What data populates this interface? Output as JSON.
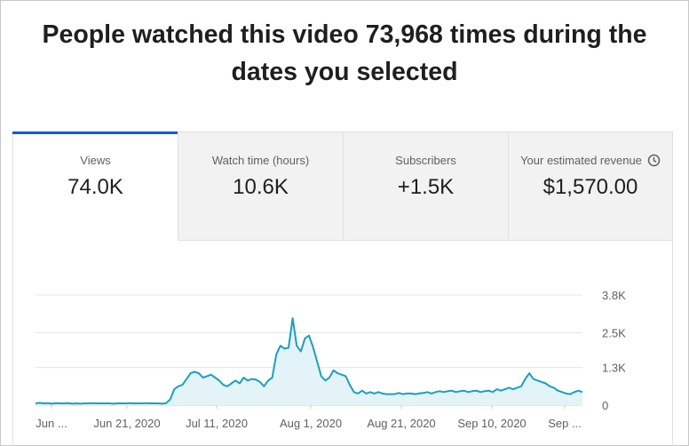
{
  "headline": "People watched this video 73,968 times during the dates you selected",
  "tabs": [
    {
      "label": "Views",
      "value": "74.0K",
      "active": true
    },
    {
      "label": "Watch time (hours)",
      "value": "10.6K",
      "active": false
    },
    {
      "label": "Subscribers",
      "value": "+1.5K",
      "active": false
    },
    {
      "label": "Your estimated revenue",
      "value": "$1,570.00",
      "active": false,
      "icon": "clock-icon"
    }
  ],
  "colors": {
    "accent": "#065fd4",
    "line": "#1ba0be",
    "area": "#e3f3f8",
    "grid": "#e5e5e5"
  },
  "chart_data": {
    "type": "area",
    "series": [
      {
        "values": [
          60,
          80,
          60,
          70,
          50,
          70,
          60,
          60,
          70,
          50,
          60,
          50,
          60,
          60,
          70,
          60,
          60,
          60,
          60,
          50,
          60,
          60,
          60,
          70,
          60,
          60,
          60,
          70,
          60,
          60,
          60,
          50,
          70,
          200,
          550,
          650,
          700,
          900,
          1100,
          1150,
          1100,
          950,
          1000,
          1050,
          950,
          850,
          700,
          650,
          750,
          850,
          750,
          950,
          850,
          900,
          880,
          800,
          650,
          850,
          950,
          1750,
          2050,
          1950,
          1980,
          3000,
          2050,
          1850,
          2300,
          2400,
          2000,
          1500,
          1000,
          850,
          950,
          1200,
          1100,
          1050,
          1000,
          700,
          450,
          400,
          500,
          400,
          450,
          400,
          450,
          400,
          380,
          380,
          380,
          420,
          380,
          400,
          400,
          380,
          400,
          420,
          450,
          400,
          450,
          480,
          450,
          480,
          500,
          450,
          480,
          500,
          450,
          480,
          500,
          450,
          480,
          500,
          450,
          550,
          500,
          550,
          600,
          550,
          600,
          650,
          900,
          1100,
          900,
          850,
          800,
          750,
          650,
          600,
          500,
          450,
          400,
          380,
          450,
          500,
          450
        ]
      }
    ],
    "x_tick_labels": [
      "Jun ...",
      "Jun 21, 2020",
      "Jul 11, 2020",
      "Aug 1, 2020",
      "Aug 21, 2020",
      "Sep 10, 2020",
      "Sep ..."
    ],
    "y_tick_labels": [
      "3.8K",
      "2.5K",
      "1.3K",
      "0"
    ],
    "ylim": [
      0,
      3800
    ],
    "grid": true
  }
}
